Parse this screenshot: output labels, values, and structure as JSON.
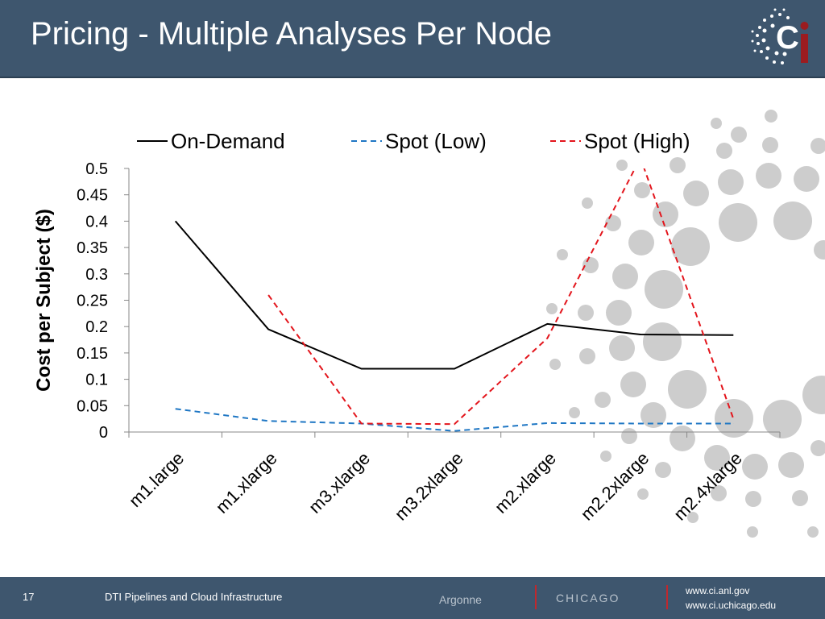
{
  "slide": {
    "title": "Pricing - Multiple Analyses Per Node"
  },
  "footer": {
    "slide_number": "17",
    "caption": "DTI Pipelines and Cloud Infrastructure",
    "argonne_logo_text": "Argonne",
    "uchicago_logo_text": "CHICAGO",
    "link_1": "www.ci.anl.gov",
    "link_2": "www.ci.uchicago.edu"
  },
  "logo": {
    "name": "ci-logo-icon",
    "text": "Ci"
  },
  "colors": {
    "header_bg": "#3e566e",
    "on_demand": "#000000",
    "spot_low": "#1f77c4",
    "spot_high": "#e3151c"
  },
  "chart_data": {
    "type": "line",
    "title": "",
    "xlabel": "",
    "ylabel": "Cost per Subject ($)",
    "ylim": [
      0,
      0.5
    ],
    "yticks": [
      "0",
      "0.05",
      "0.1",
      "0.15",
      "0.2",
      "0.25",
      "0.3",
      "0.35",
      "0.4",
      "0.45",
      "0.5"
    ],
    "legend_position": "top",
    "grid": false,
    "categories": [
      "m1.large",
      "m1.xlarge",
      "m3.xlarge",
      "m3.2xlarge",
      "m2.xlarge",
      "m2.2xlarge",
      "m2.4xlarge"
    ],
    "series": [
      {
        "name": "On-Demand",
        "style": "solid",
        "color": "#000000",
        "values": [
          0.4,
          0.195,
          0.12,
          0.12,
          0.205,
          0.185,
          0.184
        ]
      },
      {
        "name": "Spot (Low)",
        "style": "dashed",
        "color": "#1f77c4",
        "values": [
          0.044,
          0.021,
          0.016,
          0.002,
          0.017,
          0.016,
          0.016
        ]
      },
      {
        "name": "Spot (High)",
        "style": "dashed",
        "color": "#e3151c",
        "values": [
          null,
          0.26,
          0.016,
          0.015,
          0.178,
          0.52,
          0.025
        ]
      }
    ]
  }
}
